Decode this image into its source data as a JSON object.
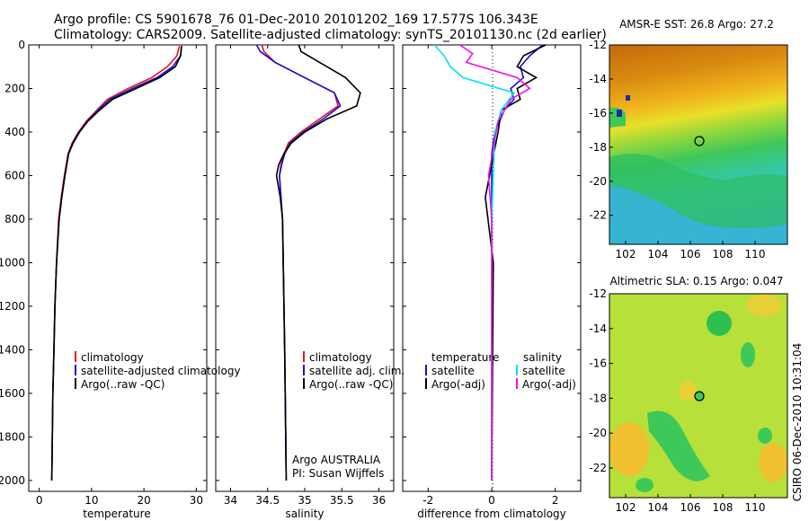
{
  "title_line1": "Argo profile: CS 5901678_76 01-Dec-2010 20101202_169 17.577S 106.343E",
  "title_line2": "Climatology: CARS2009. Satellite-adjusted climatology: synTS_20101130.nc (2d earlier)",
  "credit": "CSIRO 06-Dec-2010 10:31:04",
  "colors": {
    "climatology": "#ee1111",
    "satellite": "#1111dd",
    "argo": "#000000",
    "sat_diff": "#00e5ee",
    "argo_adj": "#ee11ee"
  },
  "chart_data": [
    {
      "type": "line",
      "panel": "temperature",
      "xlabel": "temperature",
      "ylabel": "",
      "xlim": [
        -2,
        32
      ],
      "ylim": [
        2050,
        0
      ],
      "xticks": [
        0,
        10,
        20,
        30
      ],
      "yticks": [
        0,
        200,
        400,
        600,
        800,
        1000,
        1200,
        1400,
        1600,
        1800,
        2000
      ],
      "legend": [
        "climatology",
        "satellite-adjusted climatology",
        "Argo(..raw -QC)"
      ],
      "legend_position": "lower-center",
      "series": [
        {
          "name": "climatology",
          "color": "#ee1111",
          "x": [
            26.8,
            26.3,
            24.5,
            21.5,
            17,
            13,
            11,
            9,
            7.5,
            6.3,
            5.5,
            4.8,
            4.2,
            3.7,
            3.3,
            3.0,
            2.8,
            2.6,
            2.5,
            2.4
          ],
          "y": [
            5,
            50,
            100,
            150,
            200,
            250,
            300,
            350,
            400,
            450,
            500,
            600,
            700,
            800,
            1000,
            1200,
            1400,
            1600,
            1800,
            2000
          ]
        },
        {
          "name": "satellite-adjusted climatology",
          "color": "#1111dd",
          "x": [
            27.2,
            27.0,
            25.5,
            22.5,
            17.8,
            13.5,
            11.2,
            9.2,
            7.6,
            6.4,
            5.6,
            4.9,
            4.3,
            3.8,
            3.3,
            3.0,
            2.8,
            2.6,
            2.5,
            2.4
          ],
          "y": [
            5,
            50,
            100,
            150,
            200,
            250,
            300,
            350,
            400,
            450,
            500,
            600,
            700,
            800,
            1000,
            1200,
            1400,
            1600,
            1800,
            2000
          ]
        },
        {
          "name": "Argo(..raw -QC)",
          "color": "#000000",
          "x": [
            27.2,
            27.0,
            26.0,
            23.0,
            18.5,
            14,
            11.5,
            9.3,
            7.7,
            6.5,
            5.6,
            4.9,
            4.3,
            3.8,
            3.3,
            3.0,
            2.8,
            2.6,
            2.5,
            2.4
          ],
          "y": [
            5,
            50,
            100,
            150,
            200,
            250,
            300,
            350,
            400,
            450,
            500,
            600,
            700,
            800,
            1000,
            1200,
            1400,
            1600,
            1800,
            2000
          ]
        }
      ]
    },
    {
      "type": "line",
      "panel": "salinity",
      "xlabel": "salinity",
      "xlim": [
        33.8,
        36.2
      ],
      "ylim": [
        2050,
        0
      ],
      "xticks": [
        34,
        34.5,
        35,
        35.5,
        36
      ],
      "yticks": [
        0,
        200,
        400,
        600,
        800,
        1000,
        1200,
        1400,
        1600,
        1800,
        2000
      ],
      "legend": [
        "climatology",
        "satellite adj. clim.",
        "Argo(..raw -QC)"
      ],
      "legend_position": "lower-center",
      "series": [
        {
          "name": "climatology",
          "color": "#ee1111",
          "x": [
            34.42,
            34.45,
            34.6,
            35.0,
            35.4,
            35.45,
            35.2,
            34.95,
            34.78,
            34.72,
            34.68,
            34.66,
            34.68,
            34.7,
            34.71,
            34.72,
            34.73,
            34.74,
            34.75
          ],
          "y": [
            0,
            30,
            80,
            150,
            220,
            280,
            340,
            400,
            450,
            500,
            550,
            600,
            700,
            800,
            1000,
            1200,
            1400,
            1700,
            2000
          ]
        },
        {
          "name": "satellite adj. clim.",
          "color": "#1111dd",
          "x": [
            34.35,
            34.4,
            34.6,
            35.0,
            35.4,
            35.48,
            35.25,
            34.98,
            34.8,
            34.73,
            34.69,
            34.66,
            34.68,
            34.7,
            34.71,
            34.72,
            34.73,
            34.74,
            34.75
          ],
          "y": [
            0,
            30,
            80,
            150,
            220,
            280,
            340,
            400,
            450,
            500,
            550,
            600,
            700,
            800,
            1000,
            1200,
            1400,
            1700,
            2000
          ]
        },
        {
          "name": "Argo(..raw -QC)",
          "color": "#000000",
          "x": [
            34.92,
            34.95,
            35.2,
            35.55,
            35.75,
            35.7,
            35.3,
            35.0,
            34.82,
            34.72,
            34.65,
            34.62,
            34.67,
            34.7,
            34.71,
            34.72,
            34.73,
            34.74,
            34.75
          ],
          "y": [
            0,
            30,
            80,
            150,
            220,
            280,
            340,
            400,
            450,
            500,
            550,
            600,
            700,
            800,
            1000,
            1200,
            1400,
            1700,
            2000
          ]
        }
      ],
      "annotations": [
        "Argo AUSTRALIA",
        "PI: Susan Wijffels"
      ]
    },
    {
      "type": "line",
      "panel": "difference",
      "xlabel": "difference from climatology",
      "xlim": [
        -2.8,
        2.8
      ],
      "ylim": [
        2050,
        0
      ],
      "xticks": [
        -2,
        0,
        2
      ],
      "yticks": [
        0,
        200,
        400,
        600,
        800,
        1000,
        1200,
        1400,
        1600,
        1800,
        2000
      ],
      "legend_temperature": [
        "temperature",
        "satellite",
        "Argo(-adj)"
      ],
      "legend_salinity": [
        "salinity",
        "satellite",
        "Argo(-adj)"
      ],
      "legend_position": "lower-center",
      "series": [
        {
          "name": "temperature satellite",
          "color": "#1111dd",
          "x": [
            1.6,
            1.2,
            0.9,
            1.0,
            0.6,
            0.7,
            0.4,
            0.1,
            0,
            0,
            0,
            0
          ],
          "y": [
            0,
            50,
            100,
            150,
            200,
            250,
            300,
            400,
            500,
            700,
            1000,
            2000
          ]
        },
        {
          "name": "temperature Argo(-adj)",
          "color": "#000000",
          "x": [
            1.7,
            1.0,
            0.8,
            1.4,
            0.8,
            0.9,
            0.3,
            0.2,
            0,
            -0.2,
            0.05,
            0
          ],
          "y": [
            0,
            50,
            100,
            150,
            200,
            250,
            300,
            400,
            550,
            700,
            1000,
            2000
          ]
        },
        {
          "name": "salinity satellite",
          "color": "#00e5ee",
          "x": [
            -1.8,
            -1.5,
            -1.3,
            -0.9,
            0.7,
            0.3,
            0.1,
            0.05,
            0,
            0,
            0
          ],
          "y": [
            0,
            50,
            100,
            150,
            220,
            300,
            400,
            600,
            800,
            1200,
            2000
          ]
        },
        {
          "name": "salinity Argo(-adj)",
          "color": "#ee11ee",
          "x": [
            -1.0,
            -0.6,
            -0.8,
            0.8,
            1.2,
            0.6,
            0.2,
            -0.1,
            0,
            0,
            0
          ],
          "y": [
            0,
            40,
            80,
            150,
            200,
            250,
            350,
            600,
            800,
            1200,
            2000
          ]
        }
      ]
    }
  ],
  "maps": [
    {
      "title": "AMSR-E SST: 26.8 Argo: 27.2",
      "xticks": [
        102,
        104,
        106,
        108,
        110
      ],
      "yticks": [
        -12,
        -14,
        -16,
        -18,
        -20,
        -22
      ]
    },
    {
      "title": "Altimetric SLA: 0.15 Argo: 0.047",
      "xticks": [
        102,
        104,
        106,
        108,
        110
      ],
      "yticks": [
        -12,
        -14,
        -16,
        -18,
        -20,
        -22
      ]
    }
  ]
}
